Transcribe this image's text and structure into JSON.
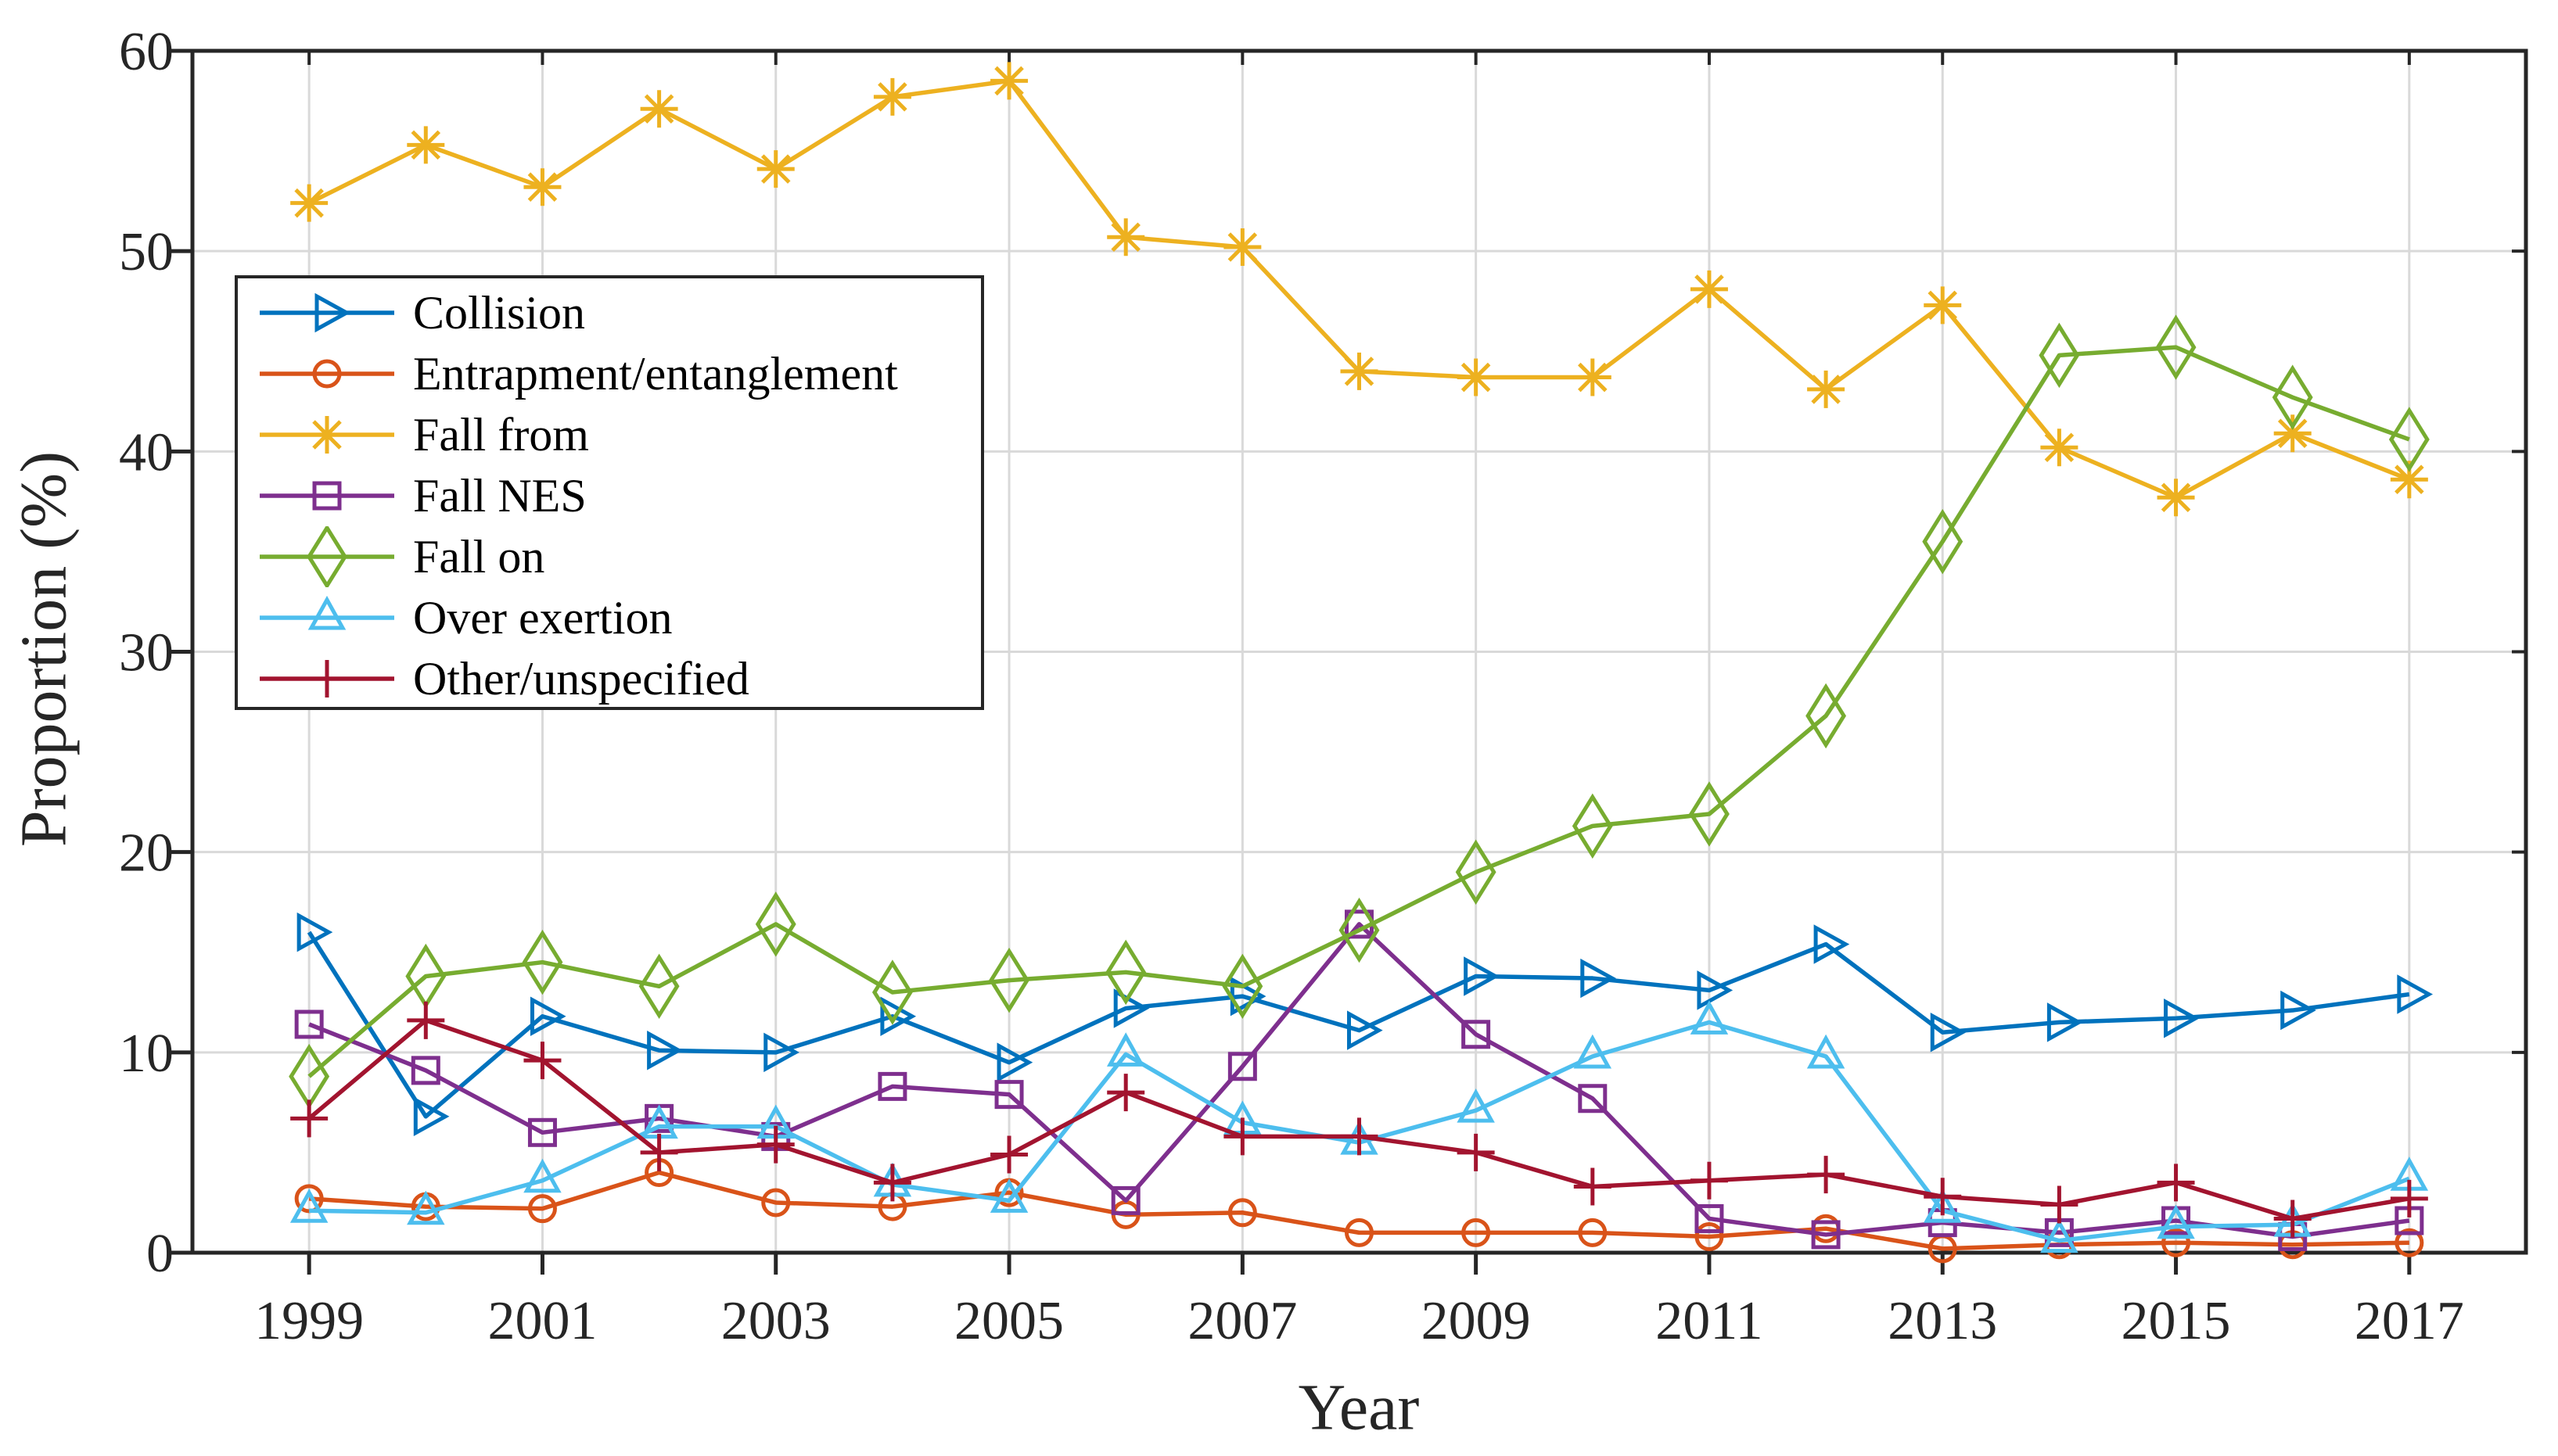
{
  "figure": {
    "background": "#ffffff",
    "axis_color": "#262626",
    "grid_color": "#d9d9d9",
    "text_color": "#262626"
  },
  "chart_data": {
    "type": "line",
    "title": "",
    "xlabel": "Year",
    "ylabel": "Proportion (%)",
    "xlim": [
      1998,
      2018
    ],
    "ylim": [
      0,
      60
    ],
    "xticks": [
      1999,
      2001,
      2003,
      2005,
      2007,
      2009,
      2011,
      2013,
      2015,
      2017
    ],
    "yticks": [
      0,
      10,
      20,
      30,
      40,
      50,
      60
    ],
    "grid": true,
    "legend_position": "upper-left",
    "x": [
      1999,
      2000,
      2001,
      2002,
      2003,
      2004,
      2005,
      2006,
      2007,
      2008,
      2009,
      2010,
      2011,
      2012,
      2013,
      2014,
      2015,
      2016,
      2017
    ],
    "series": [
      {
        "name": "Collision",
        "color": "#0072BD",
        "marker": "triangle-right",
        "values": [
          16.0,
          6.8,
          11.8,
          10.1,
          10.0,
          11.8,
          9.5,
          12.2,
          12.8,
          11.1,
          13.8,
          13.7,
          13.1,
          15.4,
          11.0,
          11.5,
          11.7,
          12.1,
          12.9
        ]
      },
      {
        "name": "Entrapment/entanglement",
        "color": "#D95319",
        "marker": "circle",
        "values": [
          2.7,
          2.3,
          2.2,
          4.0,
          2.5,
          2.3,
          3.0,
          1.9,
          2.0,
          1.0,
          1.0,
          1.0,
          0.8,
          1.2,
          0.2,
          0.4,
          0.5,
          0.4,
          0.5
        ]
      },
      {
        "name": "Fall from",
        "color": "#EDB120",
        "marker": "asterisk",
        "values": [
          52.4,
          55.3,
          53.2,
          57.1,
          54.1,
          57.7,
          58.5,
          50.7,
          50.2,
          44.0,
          43.7,
          43.7,
          48.1,
          43.1,
          47.3,
          40.2,
          37.7,
          40.9,
          38.6
        ]
      },
      {
        "name": "Fall NES",
        "color": "#7E2F8E",
        "marker": "square",
        "values": [
          11.4,
          9.1,
          6.0,
          6.7,
          5.8,
          8.3,
          7.9,
          2.6,
          9.3,
          16.4,
          10.9,
          7.7,
          1.7,
          0.9,
          1.5,
          1.0,
          1.6,
          0.8,
          1.6
        ]
      },
      {
        "name": "Fall on",
        "color": "#77AC30",
        "marker": "diamond",
        "values": [
          8.8,
          13.8,
          14.5,
          13.3,
          16.4,
          13.0,
          13.6,
          14.0,
          13.3,
          16.1,
          19.0,
          21.3,
          21.9,
          26.8,
          35.5,
          44.8,
          45.2,
          42.7,
          40.6
        ]
      },
      {
        "name": "Over exertion",
        "color": "#4DBEEE",
        "marker": "triangle-up",
        "values": [
          2.1,
          2.0,
          3.6,
          6.3,
          6.3,
          3.4,
          2.6,
          9.9,
          6.5,
          5.5,
          7.1,
          9.8,
          11.5,
          9.8,
          2.1,
          0.6,
          1.3,
          1.4,
          3.7
        ]
      },
      {
        "name": "Other/unspecified",
        "color": "#A2142F",
        "marker": "plus",
        "values": [
          6.7,
          11.6,
          9.6,
          5.0,
          5.4,
          3.5,
          4.9,
          8.0,
          5.8,
          5.8,
          5.0,
          3.3,
          3.6,
          3.9,
          2.8,
          2.4,
          3.5,
          1.7,
          2.7
        ]
      }
    ]
  }
}
